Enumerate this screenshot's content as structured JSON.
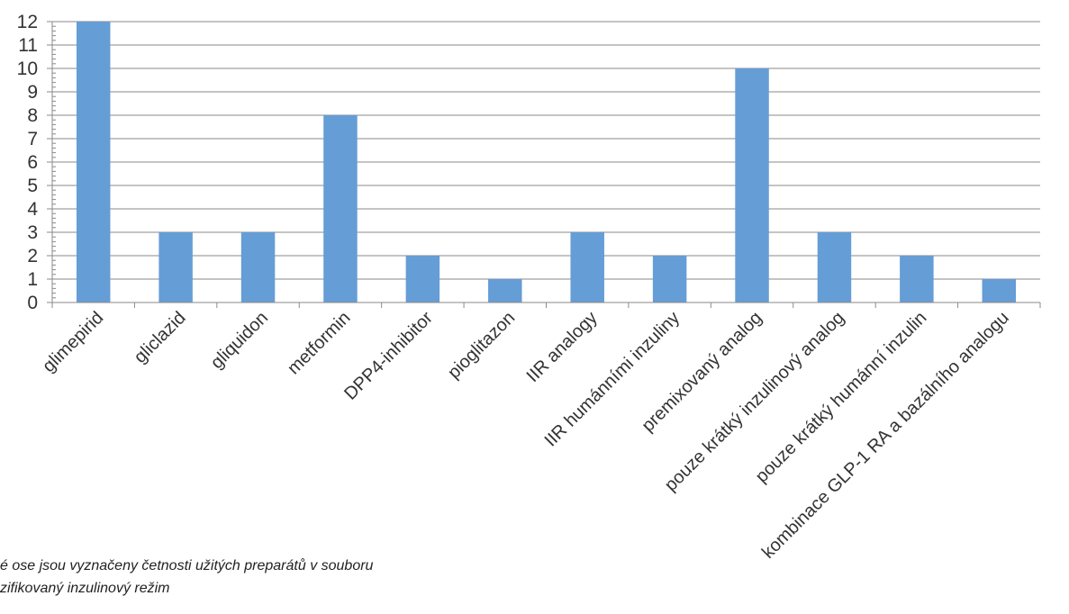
{
  "chart_data": {
    "type": "bar",
    "categories": [
      "glimepirid",
      "gliclazid",
      "gliquidon",
      "metformin",
      "DPP4-inhibitor",
      "pioglitazon",
      "IIR analogy",
      "IIR humánními inzuliny",
      "premixovaný analog",
      "pouze krátký inzulinový analog",
      "pouze krátký humánní inzulin",
      "kombinace GLP-1 RA a bazálního analogu"
    ],
    "values": [
      12,
      3,
      3,
      8,
      2,
      1,
      3,
      2,
      10,
      3,
      2,
      1
    ],
    "title": "",
    "xlabel": "",
    "ylabel": "",
    "ylim": [
      0,
      12
    ],
    "yticks": [
      0,
      1,
      2,
      3,
      4,
      5,
      6,
      7,
      8,
      9,
      10,
      11,
      12
    ],
    "grid": true,
    "legend": "none",
    "bar_color": "#659dd6"
  },
  "caption": {
    "line1": "é ose jsou vyznačeny četnosti užitých preparátů v souboru",
    "line2": "zifikovaný inzulinový režim"
  }
}
